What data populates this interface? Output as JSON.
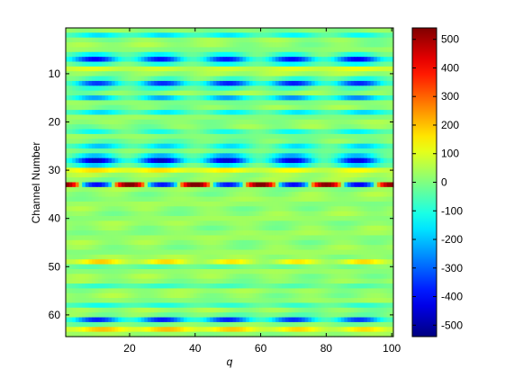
{
  "chart_data": {
    "type": "heatmap",
    "title": "",
    "xlabel": "q",
    "ylabel": "Channel Number",
    "xlim": [
      1,
      100
    ],
    "ylim": [
      1,
      64
    ],
    "y_direction": "reversed",
    "x_ticks": [
      20,
      40,
      60,
      80,
      100
    ],
    "y_ticks": [
      10,
      20,
      30,
      40,
      50,
      60
    ],
    "colormap": "jet",
    "colorbar": {
      "range": [
        -540,
        540
      ],
      "ticks": [
        500,
        400,
        300,
        200,
        100,
        0,
        -100,
        -200,
        -300,
        -400,
        -500
      ]
    },
    "period_q": 20,
    "phase_q": 10,
    "baseline": 20,
    "bands": [
      {
        "channel": 2,
        "amplitude": -170,
        "periodic": 0.6,
        "width": 0.6
      },
      {
        "channel": 7,
        "amplitude": -420,
        "periodic": 0.75,
        "width": 1.0
      },
      {
        "channel": 9,
        "amplitude": 90,
        "periodic": 0.5,
        "width": 0.7
      },
      {
        "channel": 12,
        "amplitude": -380,
        "periodic": 0.75,
        "width": 0.9
      },
      {
        "channel": 15,
        "amplitude": -260,
        "periodic": 0.7,
        "width": 0.6
      },
      {
        "channel": 18,
        "amplitude": -180,
        "periodic": 0.6,
        "width": 0.6
      },
      {
        "channel": 22,
        "amplitude": -150,
        "periodic": 0.7,
        "width": 0.7
      },
      {
        "channel": 25,
        "amplitude": -200,
        "periodic": 0.7,
        "width": 0.8
      },
      {
        "channel": 28,
        "amplitude": -470,
        "periodic": 0.8,
        "width": 1.2
      },
      {
        "channel": 30,
        "amplitude": 160,
        "periodic": 0.6,
        "width": 0.8
      },
      {
        "channel": 33,
        "amplitude": -420,
        "periodic": 0.0,
        "width": 0.5,
        "alternating": true,
        "alt_amplitude": 520
      },
      {
        "channel": 49,
        "amplitude": 150,
        "periodic": 0.8,
        "width": 0.6
      },
      {
        "channel": 50,
        "amplitude": -60,
        "periodic": 0.6,
        "width": 0.5
      },
      {
        "channel": 54,
        "amplitude": -90,
        "periodic": 0.5,
        "width": 0.5
      },
      {
        "channel": 58,
        "amplitude": -120,
        "periodic": 0.5,
        "width": 0.5
      },
      {
        "channel": 61,
        "amplitude": -380,
        "periodic": 0.75,
        "width": 0.7
      },
      {
        "channel": 63,
        "amplitude": 160,
        "periodic": 0.6,
        "width": 0.6
      }
    ]
  }
}
